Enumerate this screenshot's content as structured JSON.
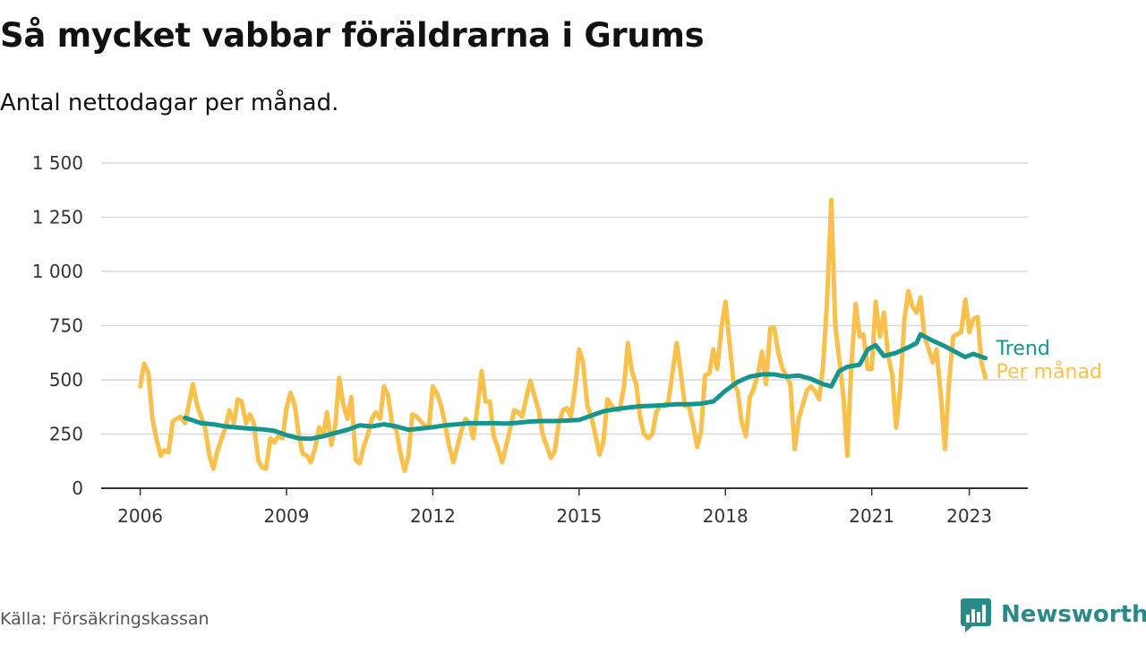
{
  "title": "Så mycket vabbar föräldrarna i Grums",
  "subtitle": "Antal nettodagar per månad.",
  "source": "Källa: Försäkringskassan",
  "brand": {
    "name": "Newsworthy",
    "logo_icon": "bar-chart-logo-icon"
  },
  "colors": {
    "per_month": "#f9c14b",
    "trend": "#15958b",
    "grid": "#d9d9d9",
    "axis": "#333333"
  },
  "chart_data": {
    "type": "line",
    "x_unit": "year",
    "xlim": [
      2005.2,
      2024.2
    ],
    "ylim": [
      0,
      1500
    ],
    "x_ticks": [
      2006,
      2009,
      2012,
      2015,
      2018,
      2021,
      2023
    ],
    "x_tick_labels": [
      "2006",
      "2009",
      "2012",
      "2015",
      "2018",
      "2021",
      "2023"
    ],
    "y_ticks": [
      0,
      250,
      500,
      750,
      1000,
      1250,
      1500
    ],
    "y_tick_labels": [
      "0",
      "250",
      "500",
      "750",
      "1 000",
      "1 250",
      "1 500"
    ],
    "grid": true,
    "series": [
      {
        "name": "Per månad",
        "color_key": "per_month",
        "points": [
          [
            2006.0,
            470
          ],
          [
            2006.08,
            575
          ],
          [
            2006.17,
            530
          ],
          [
            2006.25,
            320
          ],
          [
            2006.33,
            230
          ],
          [
            2006.42,
            150
          ],
          [
            2006.5,
            175
          ],
          [
            2006.58,
            165
          ],
          [
            2006.67,
            310
          ],
          [
            2006.75,
            320
          ],
          [
            2006.83,
            330
          ],
          [
            2006.92,
            300
          ],
          [
            2007.0,
            390
          ],
          [
            2007.08,
            480
          ],
          [
            2007.17,
            380
          ],
          [
            2007.25,
            330
          ],
          [
            2007.33,
            280
          ],
          [
            2007.42,
            150
          ],
          [
            2007.5,
            90
          ],
          [
            2007.58,
            170
          ],
          [
            2007.67,
            230
          ],
          [
            2007.75,
            280
          ],
          [
            2007.83,
            360
          ],
          [
            2007.92,
            300
          ],
          [
            2008.0,
            410
          ],
          [
            2008.08,
            400
          ],
          [
            2008.17,
            300
          ],
          [
            2008.25,
            340
          ],
          [
            2008.33,
            300
          ],
          [
            2008.42,
            130
          ],
          [
            2008.5,
            95
          ],
          [
            2008.58,
            90
          ],
          [
            2008.67,
            230
          ],
          [
            2008.75,
            210
          ],
          [
            2008.83,
            240
          ],
          [
            2008.92,
            230
          ],
          [
            2009.0,
            370
          ],
          [
            2009.08,
            440
          ],
          [
            2009.17,
            380
          ],
          [
            2009.25,
            250
          ],
          [
            2009.33,
            160
          ],
          [
            2009.42,
            150
          ],
          [
            2009.5,
            120
          ],
          [
            2009.58,
            180
          ],
          [
            2009.67,
            280
          ],
          [
            2009.75,
            240
          ],
          [
            2009.83,
            350
          ],
          [
            2009.92,
            200
          ],
          [
            2010.0,
            290
          ],
          [
            2010.08,
            510
          ],
          [
            2010.17,
            380
          ],
          [
            2010.25,
            320
          ],
          [
            2010.33,
            420
          ],
          [
            2010.42,
            130
          ],
          [
            2010.5,
            115
          ],
          [
            2010.58,
            190
          ],
          [
            2010.67,
            250
          ],
          [
            2010.75,
            320
          ],
          [
            2010.83,
            350
          ],
          [
            2010.92,
            320
          ],
          [
            2011.0,
            470
          ],
          [
            2011.08,
            430
          ],
          [
            2011.17,
            290
          ],
          [
            2011.25,
            270
          ],
          [
            2011.33,
            170
          ],
          [
            2011.42,
            80
          ],
          [
            2011.5,
            150
          ],
          [
            2011.58,
            340
          ],
          [
            2011.67,
            330
          ],
          [
            2011.75,
            310
          ],
          [
            2011.83,
            290
          ],
          [
            2011.92,
            280
          ],
          [
            2012.0,
            470
          ],
          [
            2012.08,
            440
          ],
          [
            2012.17,
            380
          ],
          [
            2012.25,
            300
          ],
          [
            2012.33,
            200
          ],
          [
            2012.42,
            120
          ],
          [
            2012.5,
            190
          ],
          [
            2012.58,
            260
          ],
          [
            2012.67,
            320
          ],
          [
            2012.75,
            300
          ],
          [
            2012.83,
            230
          ],
          [
            2012.92,
            380
          ],
          [
            2013.0,
            540
          ],
          [
            2013.08,
            400
          ],
          [
            2013.17,
            400
          ],
          [
            2013.25,
            240
          ],
          [
            2013.33,
            190
          ],
          [
            2013.42,
            120
          ],
          [
            2013.5,
            190
          ],
          [
            2013.58,
            270
          ],
          [
            2013.67,
            360
          ],
          [
            2013.75,
            350
          ],
          [
            2013.83,
            330
          ],
          [
            2013.92,
            420
          ],
          [
            2014.0,
            495
          ],
          [
            2014.08,
            430
          ],
          [
            2014.17,
            360
          ],
          [
            2014.25,
            250
          ],
          [
            2014.33,
            200
          ],
          [
            2014.42,
            140
          ],
          [
            2014.5,
            170
          ],
          [
            2014.58,
            300
          ],
          [
            2014.67,
            360
          ],
          [
            2014.75,
            370
          ],
          [
            2014.83,
            330
          ],
          [
            2014.92,
            470
          ],
          [
            2015.0,
            640
          ],
          [
            2015.08,
            580
          ],
          [
            2015.17,
            380
          ],
          [
            2015.25,
            330
          ],
          [
            2015.33,
            250
          ],
          [
            2015.42,
            155
          ],
          [
            2015.5,
            220
          ],
          [
            2015.58,
            410
          ],
          [
            2015.67,
            380
          ],
          [
            2015.75,
            360
          ],
          [
            2015.83,
            360
          ],
          [
            2015.92,
            470
          ],
          [
            2016.0,
            670
          ],
          [
            2016.08,
            540
          ],
          [
            2016.17,
            480
          ],
          [
            2016.25,
            330
          ],
          [
            2016.33,
            250
          ],
          [
            2016.42,
            230
          ],
          [
            2016.5,
            250
          ],
          [
            2016.58,
            350
          ],
          [
            2016.67,
            380
          ],
          [
            2016.75,
            380
          ],
          [
            2016.83,
            400
          ],
          [
            2016.92,
            540
          ],
          [
            2017.0,
            670
          ],
          [
            2017.08,
            540
          ],
          [
            2017.17,
            380
          ],
          [
            2017.25,
            380
          ],
          [
            2017.33,
            300
          ],
          [
            2017.42,
            190
          ],
          [
            2017.5,
            260
          ],
          [
            2017.58,
            520
          ],
          [
            2017.67,
            530
          ],
          [
            2017.75,
            640
          ],
          [
            2017.83,
            550
          ],
          [
            2017.92,
            740
          ],
          [
            2018.0,
            860
          ],
          [
            2018.08,
            680
          ],
          [
            2018.17,
            480
          ],
          [
            2018.25,
            450
          ],
          [
            2018.33,
            310
          ],
          [
            2018.42,
            240
          ],
          [
            2018.5,
            420
          ],
          [
            2018.58,
            460
          ],
          [
            2018.67,
            530
          ],
          [
            2018.75,
            630
          ],
          [
            2018.83,
            480
          ],
          [
            2018.92,
            740
          ],
          [
            2019.0,
            740
          ],
          [
            2019.08,
            630
          ],
          [
            2019.17,
            550
          ],
          [
            2019.25,
            520
          ],
          [
            2019.33,
            480
          ],
          [
            2019.42,
            180
          ],
          [
            2019.5,
            320
          ],
          [
            2019.58,
            380
          ],
          [
            2019.67,
            450
          ],
          [
            2019.75,
            470
          ],
          [
            2019.83,
            450
          ],
          [
            2019.92,
            410
          ],
          [
            2020.0,
            560
          ],
          [
            2020.08,
            850
          ],
          [
            2020.17,
            1330
          ],
          [
            2020.25,
            760
          ],
          [
            2020.33,
            600
          ],
          [
            2020.42,
            420
          ],
          [
            2020.5,
            150
          ],
          [
            2020.58,
            560
          ],
          [
            2020.67,
            850
          ],
          [
            2020.75,
            700
          ],
          [
            2020.83,
            710
          ],
          [
            2020.92,
            550
          ],
          [
            2021.0,
            550
          ],
          [
            2021.08,
            860
          ],
          [
            2021.17,
            700
          ],
          [
            2021.25,
            810
          ],
          [
            2021.33,
            620
          ],
          [
            2021.42,
            520
          ],
          [
            2021.5,
            280
          ],
          [
            2021.58,
            450
          ],
          [
            2021.67,
            780
          ],
          [
            2021.75,
            910
          ],
          [
            2021.83,
            840
          ],
          [
            2021.92,
            810
          ],
          [
            2022.0,
            880
          ],
          [
            2022.08,
            700
          ],
          [
            2022.17,
            640
          ],
          [
            2022.25,
            580
          ],
          [
            2022.33,
            640
          ],
          [
            2022.42,
            420
          ],
          [
            2022.5,
            180
          ],
          [
            2022.58,
            480
          ],
          [
            2022.67,
            700
          ],
          [
            2022.75,
            710
          ],
          [
            2022.83,
            720
          ],
          [
            2022.92,
            870
          ],
          [
            2023.0,
            720
          ],
          [
            2023.08,
            780
          ],
          [
            2023.17,
            790
          ],
          [
            2023.25,
            580
          ],
          [
            2023.33,
            510
          ]
        ]
      },
      {
        "name": "Trend",
        "color_key": "trend",
        "points": [
          [
            2006.92,
            325
          ],
          [
            2007.25,
            300
          ],
          [
            2007.5,
            295
          ],
          [
            2007.75,
            285
          ],
          [
            2008.0,
            280
          ],
          [
            2008.25,
            275
          ],
          [
            2008.5,
            272
          ],
          [
            2008.75,
            265
          ],
          [
            2009.0,
            245
          ],
          [
            2009.25,
            230
          ],
          [
            2009.5,
            228
          ],
          [
            2009.75,
            240
          ],
          [
            2010.0,
            255
          ],
          [
            2010.25,
            270
          ],
          [
            2010.5,
            290
          ],
          [
            2010.75,
            285
          ],
          [
            2011.0,
            295
          ],
          [
            2011.25,
            285
          ],
          [
            2011.5,
            270
          ],
          [
            2011.75,
            275
          ],
          [
            2012.0,
            282
          ],
          [
            2012.25,
            290
          ],
          [
            2012.5,
            295
          ],
          [
            2012.75,
            300
          ],
          [
            2013.0,
            300
          ],
          [
            2013.25,
            300
          ],
          [
            2013.5,
            298
          ],
          [
            2013.75,
            302
          ],
          [
            2014.0,
            308
          ],
          [
            2014.25,
            310
          ],
          [
            2014.5,
            310
          ],
          [
            2014.75,
            312
          ],
          [
            2015.0,
            315
          ],
          [
            2015.25,
            335
          ],
          [
            2015.5,
            355
          ],
          [
            2015.75,
            365
          ],
          [
            2016.0,
            372
          ],
          [
            2016.25,
            378
          ],
          [
            2016.5,
            380
          ],
          [
            2016.75,
            383
          ],
          [
            2017.0,
            387
          ],
          [
            2017.25,
            387
          ],
          [
            2017.5,
            390
          ],
          [
            2017.75,
            400
          ],
          [
            2018.0,
            450
          ],
          [
            2018.25,
            490
          ],
          [
            2018.5,
            515
          ],
          [
            2018.75,
            525
          ],
          [
            2019.0,
            525
          ],
          [
            2019.25,
            515
          ],
          [
            2019.5,
            520
          ],
          [
            2019.75,
            505
          ],
          [
            2020.0,
            480
          ],
          [
            2020.17,
            470
          ],
          [
            2020.33,
            540
          ],
          [
            2020.5,
            560
          ],
          [
            2020.75,
            570
          ],
          [
            2020.92,
            640
          ],
          [
            2021.08,
            660
          ],
          [
            2021.25,
            610
          ],
          [
            2021.5,
            625
          ],
          [
            2021.75,
            650
          ],
          [
            2021.92,
            670
          ],
          [
            2022.0,
            710
          ],
          [
            2022.25,
            680
          ],
          [
            2022.5,
            655
          ],
          [
            2022.75,
            625
          ],
          [
            2022.92,
            605
          ],
          [
            2023.08,
            620
          ],
          [
            2023.33,
            600
          ]
        ]
      }
    ]
  }
}
